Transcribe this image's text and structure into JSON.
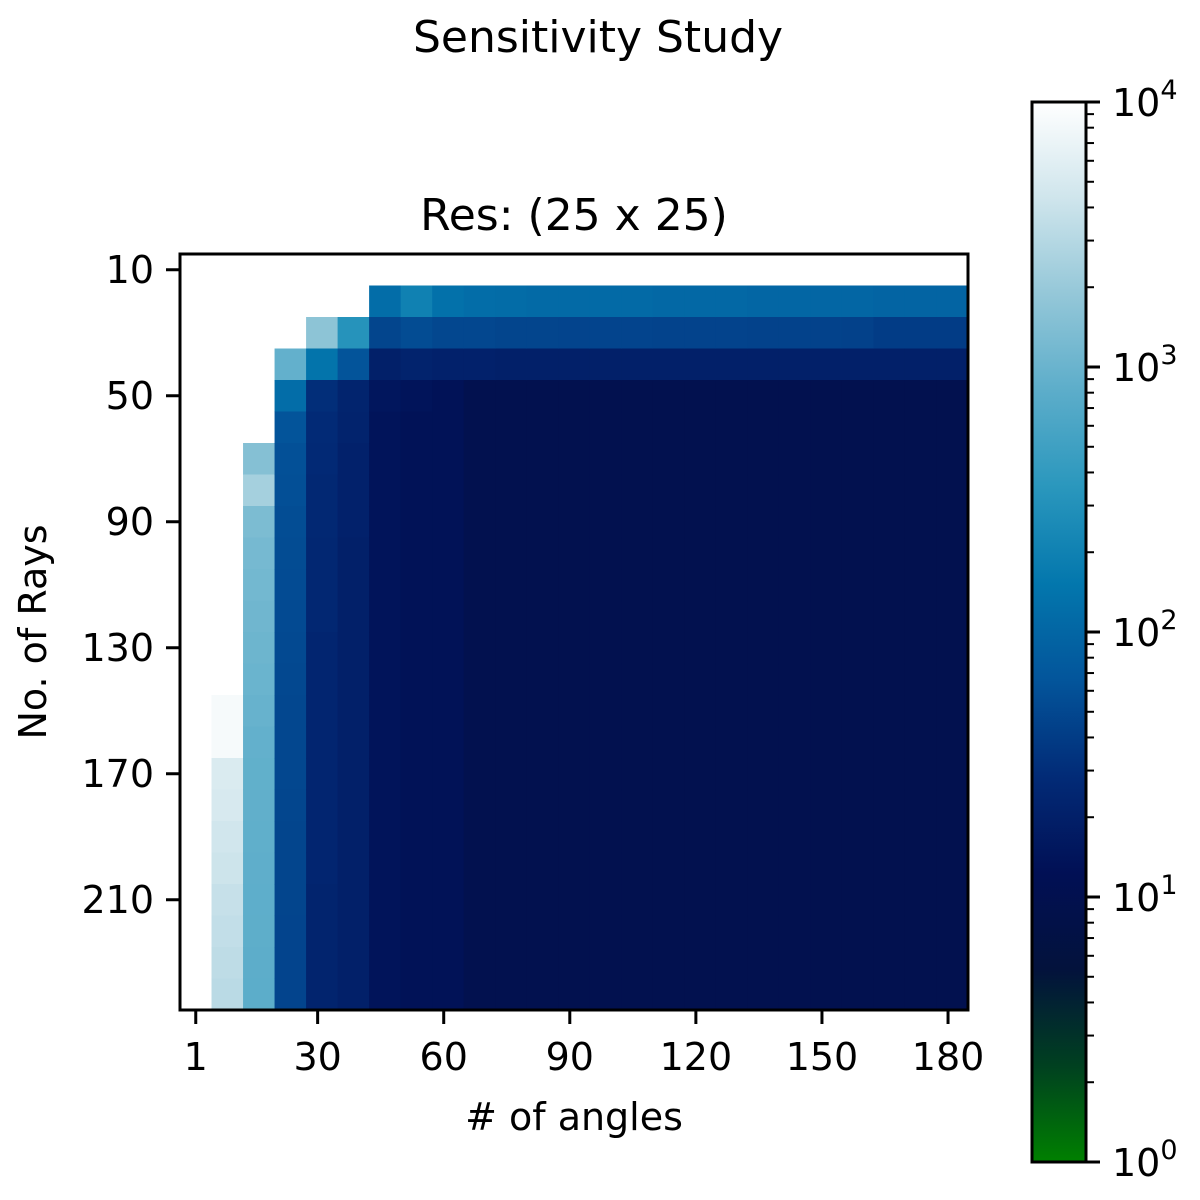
{
  "figure": {
    "suptitle": "Sensitivity Study"
  },
  "colors": {
    "colormap": [
      "#008000",
      "#004020",
      "#03123c",
      "#011055",
      "#022b77",
      "#03559b",
      "#0377ad",
      "#2a97bd",
      "#5cadca",
      "#94c7d8",
      "#cfe5ec",
      "#ffffff"
    ],
    "missing": "#ffffff"
  },
  "chart_data": {
    "type": "heatmap",
    "title": "Res: (25 x 25)",
    "xlabel": "# of angles",
    "ylabel": "No. of Rays",
    "x": [
      1,
      8,
      16,
      23,
      31,
      38,
      46,
      53,
      61,
      68,
      76,
      83,
      91,
      98,
      106,
      113,
      121,
      128,
      136,
      143,
      151,
      158,
      166,
      173,
      181
    ],
    "y": [
      10,
      20,
      30,
      40,
      50,
      60,
      70,
      80,
      90,
      100,
      110,
      120,
      130,
      140,
      150,
      160,
      170,
      180,
      190,
      200,
      210,
      220,
      230,
      240
    ],
    "xticks": [
      "1",
      "30",
      "60",
      "90",
      "120",
      "150",
      "180"
    ],
    "yticks": [
      "10",
      "50",
      "90",
      "130",
      "170",
      "210"
    ],
    "xtick_values": [
      1,
      30,
      60,
      90,
      120,
      150,
      180
    ],
    "ytick_values": [
      10,
      50,
      90,
      130,
      170,
      210
    ],
    "colorbar": {
      "scale": "log",
      "min": 1,
      "max": 10000,
      "tick_values": [
        1,
        10,
        100,
        1000,
        10000
      ],
      "tick_bases": [
        "10",
        "10",
        "10",
        "10",
        "10"
      ],
      "tick_exponents": [
        "0",
        "1",
        "2",
        "3",
        "4"
      ]
    },
    "column_profile": [
      {
        "col": 0,
        "start_row": 0,
        "end_row": -1,
        "values": []
      },
      {
        "col": 1,
        "start_row": 14,
        "values": [
          8500,
          8500,
          5200,
          5000,
          4500,
          4200,
          3800,
          3600,
          3400,
          3200
        ]
      },
      {
        "col": 2,
        "start_row": 6,
        "values": [
          1500,
          2400,
          1300,
          1200,
          1150,
          1100,
          1050,
          1000,
          950,
          900,
          880,
          870,
          860,
          850,
          840,
          830,
          820,
          810
        ]
      },
      {
        "col": 3,
        "start_row": 3,
        "values": [
          900,
          120,
          65,
          60,
          58,
          56,
          55,
          54,
          53,
          52,
          51,
          50,
          50,
          50,
          49,
          48,
          48,
          48,
          47,
          47,
          47
        ]
      },
      {
        "col": 4,
        "start_row": 2,
        "values": [
          1700,
          140,
          30,
          28,
          27,
          26,
          26,
          25,
          25,
          25,
          24,
          24,
          24,
          24,
          24,
          24,
          24,
          24,
          23,
          23,
          23,
          23
        ]
      },
      {
        "col": 5,
        "start_row": 2,
        "values": [
          320,
          65,
          23,
          22,
          21,
          21,
          21,
          20,
          20,
          20,
          20,
          20,
          20,
          20,
          20,
          20,
          20,
          20,
          20,
          20,
          20,
          20
        ]
      },
      {
        "col": 6,
        "start_row": 1,
        "values": [
          120,
          48,
          20,
          15,
          14,
          14,
          14,
          14,
          14,
          14,
          14,
          14,
          14,
          14,
          14,
          14,
          14,
          14,
          14,
          14,
          14,
          14,
          14
        ]
      },
      {
        "col": 7,
        "start_row": 1,
        "values": [
          200,
          55,
          22,
          14,
          13,
          13,
          13,
          13,
          13,
          13,
          13,
          13,
          13,
          13,
          13,
          13,
          13,
          13,
          13,
          13,
          13,
          13,
          13
        ]
      },
      {
        "col": 8,
        "start_row": 1,
        "values": [
          130,
          50,
          21,
          13,
          13,
          13,
          13,
          13,
          13,
          13,
          13,
          13,
          13,
          13,
          13,
          13,
          13,
          13,
          13,
          13,
          13,
          13,
          13
        ]
      },
      {
        "col": 9,
        "start_row": 1,
        "values": [
          120,
          50,
          21,
          10,
          10,
          10,
          10,
          10,
          10,
          10,
          10,
          10,
          10,
          10,
          10,
          10,
          10,
          10,
          10,
          10,
          10,
          10,
          10
        ]
      },
      {
        "col": 10,
        "start_row": 1,
        "values": [
          115,
          48,
          20,
          10,
          10,
          10,
          10,
          10,
          10,
          10,
          10,
          10,
          10,
          10,
          10,
          10,
          10,
          10,
          10,
          10,
          10,
          10,
          10
        ]
      },
      {
        "col": 11,
        "start_row": 1,
        "values": [
          110,
          48,
          20,
          10,
          10,
          10,
          10,
          10,
          10,
          10,
          10,
          10,
          10,
          10,
          10,
          10,
          10,
          10,
          10,
          10,
          10,
          10,
          10
        ]
      },
      {
        "col": 12,
        "start_row": 1,
        "values": [
          110,
          47,
          20,
          10,
          10,
          10,
          10,
          10,
          10,
          10,
          10,
          10,
          10,
          10,
          10,
          10,
          10,
          10,
          10,
          10,
          10,
          10,
          10
        ]
      },
      {
        "col": 13,
        "start_row": 1,
        "values": [
          110,
          47,
          20,
          10,
          10,
          10,
          10,
          10,
          10,
          10,
          10,
          10,
          10,
          10,
          10,
          10,
          10,
          10,
          10,
          10,
          10,
          10,
          10
        ]
      },
      {
        "col": 14,
        "start_row": 1,
        "values": [
          110,
          47,
          20,
          10,
          10,
          10,
          10,
          10,
          10,
          10,
          10,
          10,
          10,
          10,
          10,
          10,
          10,
          10,
          10,
          10,
          10,
          10,
          10
        ]
      },
      {
        "col": 15,
        "start_row": 1,
        "values": [
          105,
          46,
          20,
          10,
          10,
          10,
          10,
          10,
          10,
          10,
          10,
          10,
          10,
          10,
          10,
          10,
          10,
          10,
          10,
          10,
          10,
          10,
          10
        ]
      },
      {
        "col": 16,
        "start_row": 1,
        "values": [
          105,
          46,
          20,
          10,
          10,
          10,
          10,
          10,
          10,
          10,
          10,
          10,
          10,
          10,
          10,
          10,
          10,
          10,
          10,
          10,
          10,
          10,
          10
        ]
      },
      {
        "col": 17,
        "start_row": 1,
        "values": [
          105,
          46,
          20,
          10,
          10,
          10,
          10,
          10,
          10,
          10,
          10,
          10,
          10,
          10,
          10,
          10,
          10,
          10,
          10,
          10,
          10,
          10,
          10
        ]
      },
      {
        "col": 18,
        "start_row": 1,
        "values": [
          100,
          45,
          20,
          10,
          10,
          10,
          10,
          10,
          10,
          10,
          10,
          10,
          10,
          10,
          10,
          10,
          10,
          10,
          10,
          10,
          10,
          10,
          10
        ]
      },
      {
        "col": 19,
        "start_row": 1,
        "values": [
          100,
          45,
          20,
          10,
          10,
          10,
          10,
          10,
          10,
          10,
          10,
          10,
          10,
          10,
          10,
          10,
          10,
          10,
          10,
          10,
          10,
          10,
          10
        ]
      },
      {
        "col": 20,
        "start_row": 1,
        "values": [
          100,
          45,
          20,
          10,
          10,
          10,
          10,
          10,
          10,
          10,
          10,
          10,
          10,
          10,
          10,
          10,
          10,
          10,
          10,
          10,
          10,
          10,
          10
        ]
      },
      {
        "col": 21,
        "start_row": 1,
        "values": [
          100,
          44,
          20,
          10,
          10,
          10,
          10,
          10,
          10,
          10,
          10,
          10,
          10,
          10,
          10,
          10,
          10,
          10,
          10,
          10,
          10,
          10,
          10
        ]
      },
      {
        "col": 22,
        "start_row": 1,
        "values": [
          95,
          40,
          20,
          10,
          10,
          10,
          10,
          10,
          10,
          10,
          10,
          10,
          10,
          10,
          10,
          10,
          10,
          10,
          10,
          10,
          10,
          10,
          10
        ]
      },
      {
        "col": 23,
        "start_row": 1,
        "values": [
          95,
          40,
          20,
          10,
          10,
          10,
          10,
          10,
          10,
          10,
          10,
          10,
          10,
          10,
          10,
          10,
          10,
          10,
          10,
          10,
          10,
          10,
          10
        ]
      },
      {
        "col": 24,
        "start_row": 1,
        "values": [
          95,
          40,
          20,
          10,
          10,
          10,
          10,
          10,
          10,
          10,
          10,
          10,
          10,
          10,
          10,
          10,
          10,
          10,
          10,
          10,
          10,
          10,
          10
        ]
      }
    ]
  }
}
